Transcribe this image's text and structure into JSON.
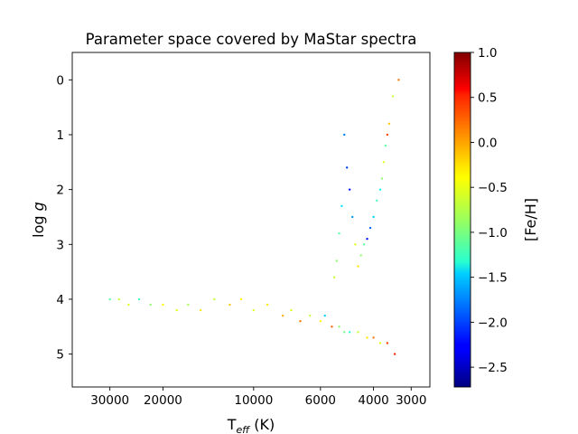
{
  "chart_data": {
    "type": "scatter",
    "title": "Parameter space covered by MaStar spectra",
    "xlabel": {
      "main": "T",
      "sub": "eff",
      "unit": " (K)"
    },
    "ylabel": {
      "main": "log ",
      "italic": "g"
    },
    "x_scale": "log",
    "x_inverted": true,
    "y_inverted": true,
    "xlim": [
      40000,
      2600
    ],
    "ylim": [
      5.6,
      -0.5
    ],
    "x_ticks": [
      30000,
      20000,
      10000,
      6000,
      4000,
      3000
    ],
    "x_tick_labels": [
      "30000",
      "20000",
      "10000",
      "6000",
      "4000",
      "3000"
    ],
    "y_ticks": [
      0,
      1,
      2,
      3,
      4,
      5
    ],
    "y_tick_labels": [
      "0",
      "1",
      "2",
      "3",
      "4",
      "5"
    ],
    "colorbar": {
      "label": "[Fe/H]",
      "colormap": "jet",
      "range": [
        -2.72,
        1.0
      ],
      "ticks": [
        1.0,
        0.5,
        0.0,
        -0.5,
        -1.0,
        -1.5,
        -2.0,
        -2.5
      ],
      "tick_labels": [
        "1.0",
        "0.5",
        "0.0",
        "−0.5",
        "−1.0",
        "−1.5",
        "−2.0",
        "−2.5"
      ]
    },
    "grid": false,
    "legend": "none",
    "series": [
      {
        "teff": [
          30000,
          28000,
          26000,
          24000,
          22000,
          20000,
          18000,
          16500,
          15000,
          13500,
          12000,
          11000,
          10000,
          9000,
          8000,
          7500,
          7000,
          6500,
          6000,
          5800,
          5500,
          5200,
          5000,
          4800,
          4500,
          4200,
          4000,
          3800,
          3600,
          3400
        ],
        "logg": [
          4.0,
          4.0,
          4.1,
          4.0,
          4.1,
          4.1,
          4.2,
          4.1,
          4.2,
          4.0,
          4.1,
          4.0,
          4.2,
          4.1,
          4.3,
          4.2,
          4.4,
          4.3,
          4.4,
          4.3,
          4.5,
          4.5,
          4.6,
          4.6,
          4.6,
          4.7,
          4.7,
          4.8,
          4.8,
          5.0
        ],
        "feh": [
          -1.0,
          -0.6,
          -0.5,
          -1.1,
          -0.8,
          -0.4,
          -0.5,
          -0.7,
          -0.3,
          -0.6,
          -0.2,
          -0.4,
          -0.5,
          -0.3,
          -0.1,
          -0.5,
          0.1,
          -0.6,
          -0.4,
          -1.5,
          0.2,
          -0.8,
          -0.9,
          -1.2,
          -0.6,
          -0.3,
          0.1,
          -0.5,
          0.3,
          0.4
        ]
      },
      {
        "teff": [
          3300,
          3450,
          3550,
          3600,
          3650,
          3700,
          3750,
          3800,
          3900,
          4000,
          4100,
          4200,
          4300,
          4400,
          4500,
          4600,
          4700,
          4800,
          4900,
          5000,
          5100,
          5200,
          5300,
          5400
        ],
        "logg": [
          0.0,
          0.3,
          0.8,
          1.0,
          1.2,
          1.5,
          1.8,
          2.0,
          2.2,
          2.5,
          2.7,
          2.9,
          3.0,
          3.2,
          3.4,
          3.0,
          2.5,
          2.0,
          1.6,
          1.0,
          2.3,
          2.8,
          3.3,
          3.6
        ],
        "feh": [
          0.1,
          -0.6,
          -0.2,
          0.3,
          -1.0,
          -0.5,
          -0.8,
          -1.3,
          -1.1,
          -1.5,
          -1.9,
          -2.2,
          -1.0,
          -0.8,
          -0.3,
          -0.5,
          -1.7,
          -2.2,
          -2.0,
          -1.8,
          -1.4,
          -1.0,
          -0.8,
          -0.6
        ]
      }
    ]
  }
}
